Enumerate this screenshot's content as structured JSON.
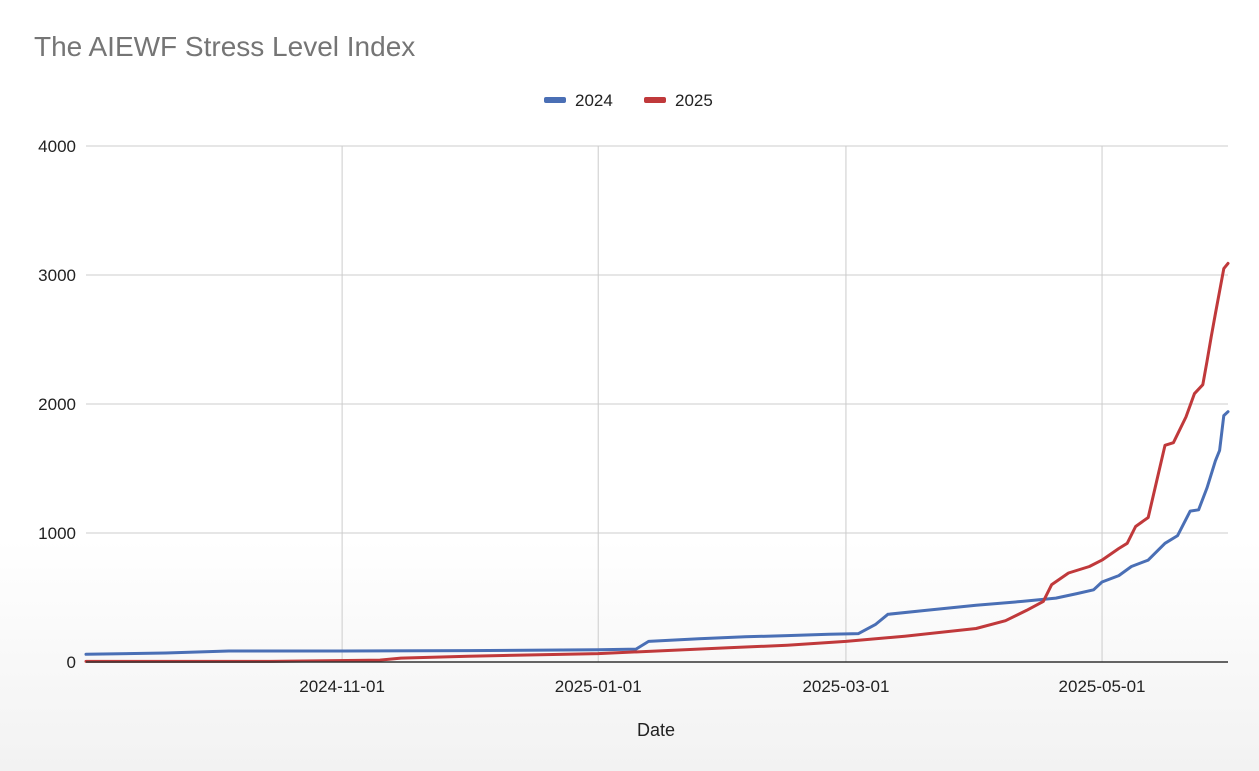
{
  "chart_data": {
    "type": "line",
    "title": "The AIEWF Stress Level Index",
    "xlabel": "Date",
    "ylabel": "",
    "x_type": "date",
    "xlim": [
      "2024-09-01",
      "2025-05-31"
    ],
    "ylim": [
      0,
      4000
    ],
    "x_ticks": [
      "2024-11-01",
      "2025-01-01",
      "2025-03-01",
      "2025-05-01"
    ],
    "y_ticks": [
      0,
      1000,
      2000,
      3000,
      4000
    ],
    "grid": true,
    "legend_position": "top",
    "series": [
      {
        "name": "2024",
        "color": "#4a6fb5",
        "points": [
          [
            "2024-09-01",
            60
          ],
          [
            "2024-09-20",
            70
          ],
          [
            "2024-10-05",
            85
          ],
          [
            "2024-11-01",
            85
          ],
          [
            "2024-12-01",
            88
          ],
          [
            "2025-01-01",
            95
          ],
          [
            "2025-01-10",
            100
          ],
          [
            "2025-01-13",
            160
          ],
          [
            "2025-01-25",
            180
          ],
          [
            "2025-02-05",
            195
          ],
          [
            "2025-02-15",
            205
          ],
          [
            "2025-02-25",
            215
          ],
          [
            "2025-03-04",
            220
          ],
          [
            "2025-03-08",
            290
          ],
          [
            "2025-03-11",
            370
          ],
          [
            "2025-03-20",
            400
          ],
          [
            "2025-04-01",
            440
          ],
          [
            "2025-04-12",
            470
          ],
          [
            "2025-04-20",
            495
          ],
          [
            "2025-04-25",
            530
          ],
          [
            "2025-04-29",
            560
          ],
          [
            "2025-05-01",
            620
          ],
          [
            "2025-05-05",
            670
          ],
          [
            "2025-05-08",
            740
          ],
          [
            "2025-05-12",
            790
          ],
          [
            "2025-05-16",
            920
          ],
          [
            "2025-05-19",
            980
          ],
          [
            "2025-05-22",
            1170
          ],
          [
            "2025-05-24",
            1180
          ],
          [
            "2025-05-26",
            1350
          ],
          [
            "2025-05-28",
            1560
          ],
          [
            "2025-05-29",
            1640
          ],
          [
            "2025-05-30",
            1910
          ],
          [
            "2025-05-31",
            1940
          ]
        ]
      },
      {
        "name": "2025",
        "color": "#c0393b",
        "points": [
          [
            "2024-09-01",
            5
          ],
          [
            "2024-10-15",
            5
          ],
          [
            "2024-11-10",
            15
          ],
          [
            "2024-11-15",
            30
          ],
          [
            "2024-12-01",
            45
          ],
          [
            "2025-01-01",
            65
          ],
          [
            "2025-01-15",
            85
          ],
          [
            "2025-02-01",
            110
          ],
          [
            "2025-02-15",
            130
          ],
          [
            "2025-03-01",
            160
          ],
          [
            "2025-03-15",
            200
          ],
          [
            "2025-04-01",
            260
          ],
          [
            "2025-04-08",
            320
          ],
          [
            "2025-04-13",
            400
          ],
          [
            "2025-04-17",
            470
          ],
          [
            "2025-04-19",
            600
          ],
          [
            "2025-04-23",
            690
          ],
          [
            "2025-04-28",
            740
          ],
          [
            "2025-05-01",
            790
          ],
          [
            "2025-05-05",
            880
          ],
          [
            "2025-05-07",
            920
          ],
          [
            "2025-05-09",
            1050
          ],
          [
            "2025-05-12",
            1120
          ],
          [
            "2025-05-14",
            1400
          ],
          [
            "2025-05-16",
            1680
          ],
          [
            "2025-05-18",
            1700
          ],
          [
            "2025-05-21",
            1900
          ],
          [
            "2025-05-23",
            2080
          ],
          [
            "2025-05-25",
            2150
          ],
          [
            "2025-05-26",
            2330
          ],
          [
            "2025-05-27",
            2520
          ],
          [
            "2025-05-28",
            2700
          ],
          [
            "2025-05-30",
            3050
          ],
          [
            "2025-05-31",
            3090
          ]
        ]
      }
    ]
  }
}
